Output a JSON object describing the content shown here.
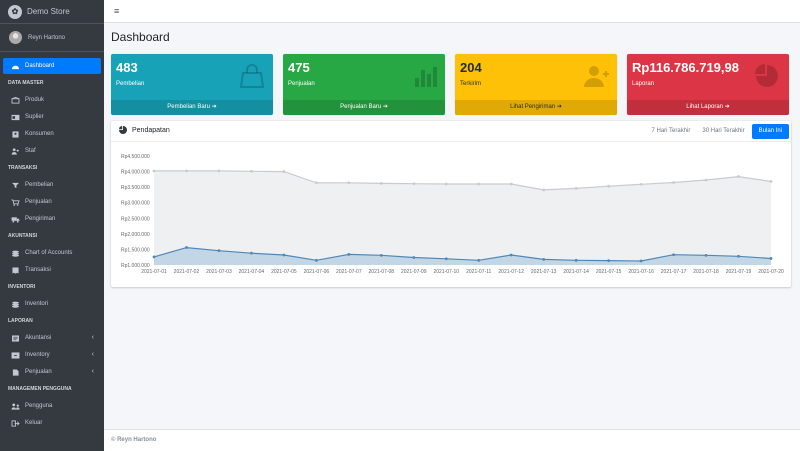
{
  "brand": {
    "name": "Demo Store"
  },
  "user": {
    "name": "Reyn Hartono"
  },
  "sidebar": {
    "dashboard": "Dashboard",
    "sections": [
      {
        "header": "DATA MASTER",
        "items": [
          {
            "label": "Produk",
            "icon": "box-icon"
          },
          {
            "label": "Suplier",
            "icon": "id-card-icon"
          },
          {
            "label": "Konsumen",
            "icon": "address-book-icon"
          },
          {
            "label": "Staf",
            "icon": "users-icon"
          }
        ]
      },
      {
        "header": "TRANSAKSI",
        "items": [
          {
            "label": "Pembelian",
            "icon": "filter-icon"
          },
          {
            "label": "Penjualan",
            "icon": "cart-icon"
          },
          {
            "label": "Pengiriman",
            "icon": "truck-icon"
          }
        ]
      },
      {
        "header": "AKUNTANSI",
        "items": [
          {
            "label": "Chart of Accounts",
            "icon": "coins-icon"
          },
          {
            "label": "Transaksi",
            "icon": "receipt-icon"
          }
        ]
      },
      {
        "header": "INVENTORI",
        "items": [
          {
            "label": "Inventori",
            "icon": "coins-icon"
          }
        ]
      },
      {
        "header": "LAPORAN",
        "items": [
          {
            "label": "Akuntansi",
            "icon": "report-icon",
            "expand": "‹"
          },
          {
            "label": "Inventory",
            "icon": "inventory-icon",
            "expand": "‹"
          },
          {
            "label": "Penjualan",
            "icon": "file-icon",
            "expand": "‹"
          }
        ]
      },
      {
        "header": "MANAGEMEN PENGGUNA",
        "items": [
          {
            "label": "Pengguna",
            "icon": "users-cog-icon"
          }
        ]
      }
    ],
    "logout": "Keluar"
  },
  "page": {
    "title": "Dashboard"
  },
  "boxes": [
    {
      "value": "483",
      "label": "Pembelian",
      "link": "Pembelian Baru",
      "color": "#17a2b8",
      "icon": "shopping-bag-icon"
    },
    {
      "value": "475",
      "label": "Penjualan",
      "link": "Penjualan Baru",
      "color": "#28a745",
      "icon": "bar-chart-icon"
    },
    {
      "value": "204",
      "label": "Terkirim",
      "link": "Lihat Pengiriman",
      "color": "#ffc107",
      "icon": "user-plus-icon"
    },
    {
      "value": "Rp116.786.719,98",
      "label": "Laporan",
      "link": "Lihat Laporan",
      "color": "#dc3545",
      "icon": "pie-chart-icon"
    }
  ],
  "revenue_card": {
    "title": "Pendapatan",
    "tabs": [
      "7 Hari Terakhir",
      "30 Hari Terakhir",
      "Bulan Ini"
    ],
    "active_tab": 2
  },
  "chart_data": {
    "type": "area",
    "x": [
      "2021-07-01",
      "2021-07-02",
      "2021-07-03",
      "2021-07-04",
      "2021-07-05",
      "2021-07-06",
      "2021-07-07",
      "2021-07-08",
      "2021-07-09",
      "2021-07-10",
      "2021-07-11",
      "2021-07-12",
      "2021-07-13",
      "2021-07-14",
      "2021-07-15",
      "2021-07-16",
      "2021-07-17",
      "2021-07-18",
      "2021-07-19",
      "2021-07-20"
    ],
    "yticks": [
      "Rp1.000.000",
      "Rp1.500.000",
      "Rp2.000.000",
      "Rp2.500.000",
      "Rp3.000.000",
      "Rp3.500.000",
      "Rp4.000.000",
      "Rp4.500.000"
    ],
    "ylim": [
      1000000,
      4500000
    ],
    "series": [
      {
        "color": "#c8cbd0",
        "fill": "#eef0f2",
        "values": [
          4020000,
          4020000,
          4020000,
          4010000,
          4000000,
          3640000,
          3640000,
          3620000,
          3610000,
          3600000,
          3600000,
          3600000,
          3410000,
          3460000,
          3530000,
          3590000,
          3650000,
          3730000,
          3840000,
          3680000
        ]
      },
      {
        "color": "#4f88b8",
        "fill": "#c3d6e5",
        "values": [
          1260000,
          1560000,
          1460000,
          1380000,
          1320000,
          1150000,
          1340000,
          1310000,
          1240000,
          1200000,
          1150000,
          1320000,
          1180000,
          1150000,
          1140000,
          1130000,
          1330000,
          1310000,
          1280000,
          1210000
        ]
      }
    ]
  },
  "footer": {
    "text": "© Reyn Hartono"
  }
}
